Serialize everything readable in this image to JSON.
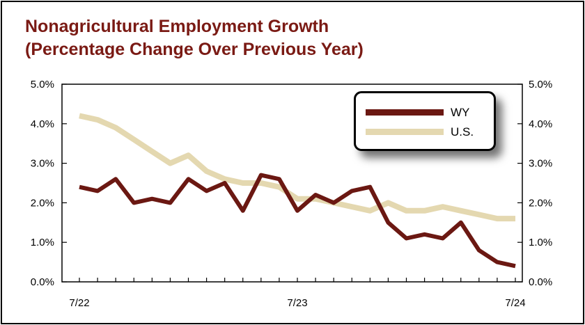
{
  "colors": {
    "title": "#7a1a14",
    "wy": "#6b1812",
    "us": "#e4d8b0"
  },
  "chart_data": {
    "type": "line",
    "title_lines": [
      "Nonagricultural Employment Growth",
      "(Percentage Change Over Previous Year)"
    ],
    "xlabel": "",
    "ylabel": "",
    "x_tick_labels": [
      "7/22",
      "7/23",
      "7/24"
    ],
    "y_tick_labels": [
      "0.0%",
      "1.0%",
      "2.0%",
      "3.0%",
      "4.0%",
      "5.0%"
    ],
    "ylim": [
      0,
      5
    ],
    "grid": false,
    "legend_position": "top-right",
    "series": [
      {
        "name": "WY",
        "values": [
          2.4,
          2.3,
          2.6,
          2.0,
          2.1,
          2.0,
          2.6,
          2.3,
          2.5,
          1.8,
          2.7,
          2.6,
          1.8,
          2.2,
          2.0,
          2.3,
          2.4,
          1.5,
          1.1,
          1.2,
          1.1,
          1.5,
          0.8,
          0.5,
          0.4
        ]
      },
      {
        "name": "U.S.",
        "values": [
          4.2,
          4.1,
          3.9,
          3.6,
          3.3,
          3.0,
          3.2,
          2.8,
          2.6,
          2.5,
          2.5,
          2.4,
          2.1,
          2.1,
          2.0,
          1.9,
          1.8,
          2.0,
          1.8,
          1.8,
          1.9,
          1.8,
          1.7,
          1.6,
          1.6
        ]
      }
    ]
  }
}
